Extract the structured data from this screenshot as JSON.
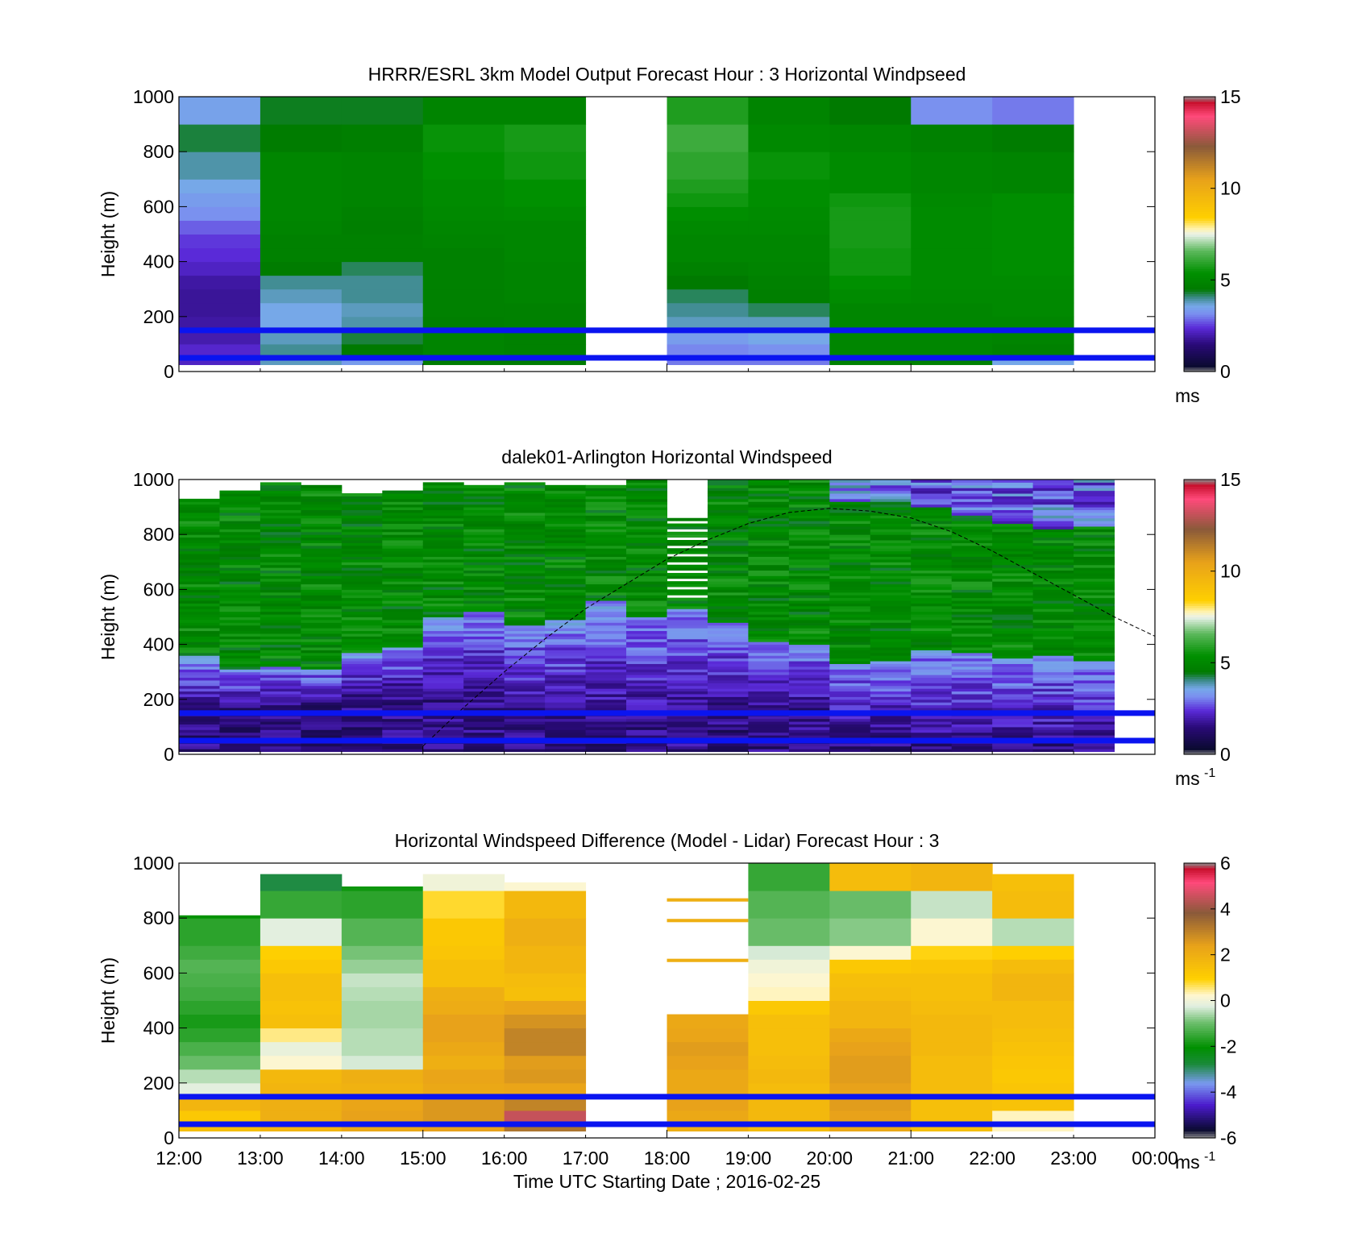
{
  "figure": {
    "xlabel": "Time UTC  Starting Date ; 2016-02-25",
    "x_ticks": [
      "12:00",
      "13:00",
      "14:00",
      "15:00",
      "16:00",
      "17:00",
      "18:00",
      "19:00",
      "20:00",
      "21:00",
      "22:00",
      "23:00",
      "00:00"
    ]
  },
  "colormaps": {
    "windspeed": {
      "range": [
        0,
        15
      ],
      "stops": [
        [
          0.0,
          "#8c8c8c"
        ],
        [
          0.02,
          "#0a0a30"
        ],
        [
          0.1,
          "#2a0a78"
        ],
        [
          0.16,
          "#5a2ad8"
        ],
        [
          0.21,
          "#7a8ef0"
        ],
        [
          0.24,
          "#76a8e8"
        ],
        [
          0.27,
          "#3c8a8a"
        ],
        [
          0.3,
          "#007a00"
        ],
        [
          0.36,
          "#009000"
        ],
        [
          0.44,
          "#5cb85c"
        ],
        [
          0.5,
          "#eaf2ea"
        ],
        [
          0.52,
          "#fff3b0"
        ],
        [
          0.56,
          "#ffd000"
        ],
        [
          0.7,
          "#e8a21a"
        ],
        [
          0.82,
          "#8a5a3a"
        ],
        [
          0.93,
          "#ff4a7a"
        ],
        [
          0.98,
          "#c8102e"
        ],
        [
          1.0,
          "#8c8c8c"
        ]
      ]
    },
    "difference": {
      "range": [
        -6,
        6
      ],
      "stops": [
        [
          0.0,
          "#8c8c8c"
        ],
        [
          0.03,
          "#0a0a30"
        ],
        [
          0.12,
          "#4a1acc"
        ],
        [
          0.2,
          "#7a9af0"
        ],
        [
          0.27,
          "#1a8a3a"
        ],
        [
          0.33,
          "#009000"
        ],
        [
          0.42,
          "#6cbe6c"
        ],
        [
          0.48,
          "#e0eee0"
        ],
        [
          0.52,
          "#fff7d0"
        ],
        [
          0.58,
          "#ffd000"
        ],
        [
          0.7,
          "#e8a21a"
        ],
        [
          0.82,
          "#8a5a3a"
        ],
        [
          0.93,
          "#ff4a7a"
        ],
        [
          0.98,
          "#c8102e"
        ],
        [
          1.0,
          "#8c8c8c"
        ]
      ]
    }
  },
  "chart_data": [
    {
      "type": "heatmap",
      "title": "HRRR/ESRL 3km Model Output   Forecast Hour : 3 Horizontal Windpseed",
      "ylabel": "Height (m)",
      "xlim": [
        12,
        24
      ],
      "ylim": [
        0,
        1000
      ],
      "y_ticks": [
        "0",
        "200",
        "400",
        "600",
        "800",
        "1000"
      ],
      "colorbar": {
        "label": "ms",
        "ticks": [
          "0",
          "5",
          "10",
          "15"
        ],
        "range": [
          0,
          15
        ],
        "colormap": "windspeed"
      },
      "x_tick_labels_visible": false,
      "cell_hours": [
        12,
        13,
        14,
        15,
        16,
        18,
        19,
        20,
        21,
        22
      ],
      "cell_top_m": 1000,
      "height_levels_m": [
        25,
        55,
        100,
        150,
        200,
        250,
        300,
        350,
        400,
        450,
        500,
        550,
        600,
        650,
        700,
        800,
        900,
        1000
      ],
      "values_ms": [
        [
          2.2,
          2.3,
          2.0,
          1.9,
          1.8,
          1.8,
          1.9,
          2.2,
          2.4,
          2.5,
          2.8,
          3.2,
          3.4,
          3.6,
          3.9,
          4.3,
          3.5
        ],
        [
          3.8,
          4.0,
          3.8,
          3.6,
          3.6,
          3.8,
          4.0,
          4.6,
          4.8,
          4.8,
          4.9,
          5.0,
          5.0,
          5.0,
          5.0,
          4.6,
          4.4
        ],
        [
          3.4,
          4.5,
          4.3,
          3.9,
          3.8,
          4.0,
          4.0,
          4.2,
          4.8,
          4.8,
          4.7,
          4.8,
          4.9,
          4.9,
          4.9,
          4.7,
          4.4
        ],
        [
          4.6,
          4.9,
          4.9,
          4.7,
          4.8,
          4.8,
          4.8,
          4.8,
          4.8,
          4.9,
          5.0,
          5.1,
          5.2,
          5.2,
          5.4,
          5.5,
          4.9
        ],
        [
          4.6,
          4.8,
          4.8,
          4.8,
          4.8,
          4.9,
          4.9,
          4.9,
          5.0,
          5.0,
          5.0,
          5.2,
          5.4,
          5.4,
          5.6,
          5.7,
          4.9
        ],
        [
          3.0,
          3.1,
          3.4,
          3.8,
          4.0,
          4.2,
          4.5,
          4.8,
          5.0,
          5.0,
          5.1,
          5.3,
          5.6,
          5.8,
          6.0,
          6.2,
          5.8
        ],
        [
          3.0,
          3.2,
          3.6,
          3.8,
          4.2,
          4.7,
          4.8,
          4.9,
          5.0,
          5.0,
          5.1,
          5.2,
          5.3,
          5.3,
          5.5,
          5.1,
          4.9
        ],
        [
          4.8,
          5.0,
          5.0,
          5.0,
          5.0,
          5.2,
          5.4,
          5.6,
          5.6,
          5.7,
          5.7,
          5.7,
          5.6,
          5.2,
          5.2,
          5.0,
          4.5
        ],
        [
          4.8,
          5.0,
          5.0,
          5.0,
          5.0,
          5.1,
          5.2,
          5.2,
          5.2,
          5.2,
          5.2,
          5.2,
          5.1,
          5.0,
          5.0,
          4.8,
          3.2
        ],
        [
          3.6,
          4.8,
          4.9,
          5.0,
          5.1,
          5.1,
          5.2,
          5.3,
          5.3,
          5.3,
          5.3,
          5.3,
          5.3,
          4.9,
          4.9,
          4.6,
          3.0
        ]
      ],
      "reference_lines_m": [
        50,
        150
      ]
    },
    {
      "type": "heatmap",
      "title": "dalek01-Arlington  Horizontal Windspeed",
      "ylabel": "Height (m)",
      "xlim": [
        12,
        24
      ],
      "ylim": [
        0,
        1000
      ],
      "y_ticks": [
        "0",
        "200",
        "400",
        "600",
        "800",
        "1000"
      ],
      "colorbar": {
        "label": "ms",
        "label_superscript": "-1",
        "ticks": [
          "0",
          "5",
          "10",
          "15"
        ],
        "range": [
          0,
          15
        ],
        "colormap": "windspeed"
      },
      "x_tick_labels_visible": false,
      "profile_hours": [
        12.0,
        12.5,
        13.0,
        13.5,
        14.0,
        14.5,
        15.0,
        15.5,
        16.0,
        16.5,
        17.0,
        17.5,
        18.0,
        18.5,
        19.0,
        19.5,
        20.0,
        20.5,
        21.0,
        21.5,
        22.0,
        22.5,
        23.0
      ],
      "low_layer_top_m": [
        150,
        170,
        180,
        190,
        190,
        200,
        200,
        180,
        140,
        120,
        100,
        100,
        130,
        160,
        160,
        150,
        80,
        60,
        40,
        30,
        30,
        30,
        30
      ],
      "mid_layer_top_m": [
        360,
        310,
        320,
        310,
        370,
        390,
        500,
        520,
        470,
        490,
        560,
        500,
        530,
        480,
        410,
        400,
        330,
        340,
        380,
        370,
        350,
        360,
        340
      ],
      "data_top_m": [
        930,
        960,
        990,
        980,
        950,
        960,
        990,
        980,
        990,
        980,
        980,
        1000,
        920,
        1000,
        1000,
        1000,
        1000,
        1000,
        1000,
        1000,
        1000,
        1000,
        1000
      ],
      "upper_low_speed_from_m": [
        null,
        null,
        null,
        null,
        null,
        null,
        null,
        null,
        null,
        null,
        null,
        null,
        null,
        null,
        null,
        null,
        920,
        920,
        900,
        870,
        840,
        820,
        830
      ],
      "sun_elevation_curve": {
        "x": [
          15.0,
          15.5,
          16.0,
          16.5,
          17.0,
          17.5,
          18.0,
          18.5,
          19.0,
          19.5,
          20.0,
          20.5,
          21.0,
          21.5,
          22.0,
          22.5,
          23.0,
          23.5,
          24.0
        ],
        "y": [
          30,
          170,
          300,
          420,
          530,
          620,
          710,
          780,
          840,
          880,
          895,
          885,
          860,
          810,
          740,
          660,
          580,
          500,
          430
        ]
      },
      "reference_lines_m": [
        50,
        150
      ]
    },
    {
      "type": "heatmap",
      "title": "Horizontal Windspeed Difference (Model - Lidar) Forecast Hour : 3",
      "ylabel": "Height (m)",
      "xlim": [
        12,
        24
      ],
      "ylim": [
        0,
        1000
      ],
      "y_ticks": [
        "0",
        "200",
        "400",
        "600",
        "800",
        "1000"
      ],
      "colorbar": {
        "label": "ms",
        "label_superscript": "-1",
        "ticks": [
          "-6",
          "-4",
          "-2",
          "0",
          "2",
          "4",
          "6"
        ],
        "range": [
          -6,
          6
        ],
        "colormap": "difference"
      },
      "x_tick_labels_visible": true,
      "cell_hours": [
        12,
        13,
        14,
        15,
        16,
        18,
        19,
        20,
        21,
        22
      ],
      "column_top_m": [
        810,
        960,
        915,
        960,
        930,
        480,
        1000,
        1000,
        1000,
        960
      ],
      "height_levels_m": [
        25,
        55,
        100,
        150,
        200,
        250,
        300,
        350,
        400,
        450,
        500,
        550,
        600,
        650,
        700,
        800,
        900,
        1000
      ],
      "values_ms": [
        [
          1.5,
          1.2,
          1.8,
          -0.2,
          -0.5,
          -1.0,
          -1.3,
          -1.6,
          -1.8,
          -1.6,
          -1.4,
          -1.3,
          -1.2,
          -1.4,
          -1.6,
          -2.0,
          -2.0
        ],
        [
          1.8,
          2.0,
          2.0,
          1.8,
          1.7,
          0.2,
          -0.1,
          0.5,
          1.5,
          1.4,
          1.5,
          1.5,
          1.2,
          1.0,
          -0.2,
          -1.5,
          -2.8
        ],
        [
          2.2,
          2.4,
          2.3,
          1.9,
          2.0,
          -0.3,
          -0.5,
          -0.5,
          -0.6,
          -0.6,
          -0.5,
          -0.4,
          -0.7,
          -0.9,
          -1.2,
          -1.6,
          -1.9
        ],
        [
          2.4,
          2.6,
          2.6,
          2.2,
          2.3,
          2.0,
          2.2,
          2.4,
          2.4,
          2.1,
          2.0,
          1.5,
          1.5,
          1.3,
          1.2,
          0.8,
          0.0
        ],
        [
          3.3,
          4.5,
          3.0,
          2.3,
          2.6,
          2.5,
          3.0,
          3.0,
          2.7,
          2.3,
          1.5,
          1.6,
          1.8,
          1.8,
          2.0,
          1.7,
          0.2
        ],
        [
          2.0,
          2.2,
          2.4,
          2.2,
          2.2,
          2.4,
          2.5,
          2.3,
          2.2,
          null,
          null,
          null,
          null,
          null,
          null,
          null,
          null
        ],
        [
          1.6,
          1.7,
          1.7,
          1.6,
          1.7,
          1.6,
          1.5,
          1.5,
          1.5,
          1.2,
          0.3,
          0.2,
          0.0,
          -0.3,
          -1.0,
          -1.2,
          -1.5
        ],
        [
          2.2,
          2.4,
          2.5,
          2.4,
          2.5,
          2.5,
          2.4,
          2.2,
          1.8,
          1.8,
          1.6,
          1.5,
          1.2,
          0.2,
          -0.8,
          -1.0,
          1.6
        ],
        [
          1.5,
          1.5,
          1.5,
          1.6,
          1.6,
          1.6,
          1.7,
          1.7,
          1.7,
          1.6,
          1.5,
          1.5,
          1.3,
          0.9,
          0.2,
          -0.4,
          1.8
        ],
        [
          0.3,
          0.3,
          1.4,
          1.3,
          1.2,
          1.3,
          1.4,
          1.5,
          1.6,
          1.6,
          1.8,
          1.8,
          1.6,
          1.0,
          -0.5,
          1.6,
          1.5
        ]
      ],
      "sparse_segments": [
        {
          "hour": 18,
          "height_m": 860,
          "value_ms": 2.0
        },
        {
          "hour": 18,
          "height_m": 785,
          "value_ms": 2.0
        },
        {
          "hour": 18,
          "height_m": 640,
          "value_ms": 2.0
        }
      ],
      "reference_lines_m": [
        50,
        150
      ]
    }
  ]
}
